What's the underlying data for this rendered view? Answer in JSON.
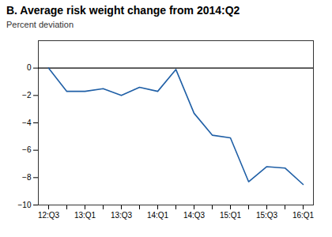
{
  "chart_data": {
    "type": "line",
    "title": "B. Average risk weight change from 2014:Q2",
    "ylabel": "Percent deviation",
    "categories": [
      "12:Q3",
      null,
      "13:Q1",
      null,
      "13:Q3",
      null,
      "14:Q1",
      null,
      "14:Q3",
      null,
      "15:Q1",
      null,
      "15:Q3",
      null,
      "16:Q1"
    ],
    "values": [
      0.0,
      -1.7,
      -1.7,
      -1.5,
      -2.0,
      -1.4,
      -1.7,
      -0.1,
      -3.3,
      -4.9,
      -5.1,
      -8.3,
      -7.2,
      -7.3,
      -8.5
    ],
    "color": "#1f5fa6",
    "ylim": [
      -10,
      2
    ],
    "yticks": [
      -10,
      -8,
      -6,
      -4,
      -2,
      0
    ],
    "grid": false
  }
}
